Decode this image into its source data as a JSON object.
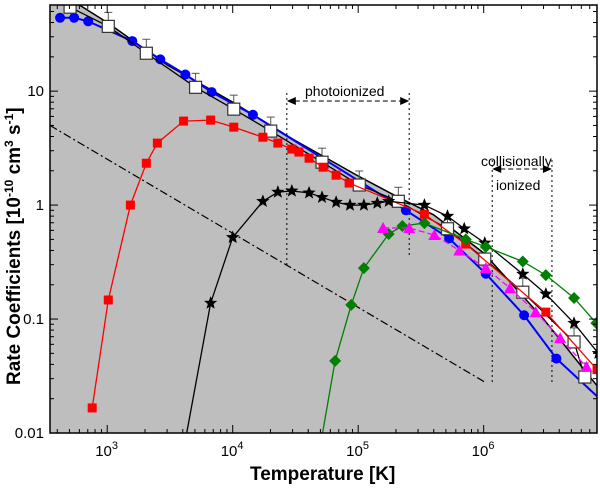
{
  "chart_data": {
    "type": "line",
    "xlabel": "Temperature [K]",
    "ylabel": "Rate Coefficients [10",
    "ylabel_exp": "-10",
    "ylabel_mid": " cm",
    "ylabel_exp2": "3",
    "ylabel_mid2": " s",
    "ylabel_exp3": "-1",
    "ylabel_end": "]",
    "xscale": "log",
    "yscale": "log",
    "xlim": [
      350,
      8000000
    ],
    "ylim": [
      0.01,
      57
    ],
    "xticks": [
      {
        "base": "10",
        "exp": "3",
        "v": 1000
      },
      {
        "base": "10",
        "exp": "4",
        "v": 10000
      },
      {
        "base": "10",
        "exp": "5",
        "v": 100000
      },
      {
        "base": "10",
        "exp": "6",
        "v": 1000000
      }
    ],
    "yticks": [
      {
        "label": "10",
        "v": 10
      },
      {
        "label": "1",
        "v": 1
      },
      {
        "label": "0.1",
        "v": 0.1
      },
      {
        "label": "0.01",
        "v": 0.01
      }
    ],
    "annotations": {
      "photo": "photoionized",
      "coll1": "collisionally",
      "coll2": "ionized"
    },
    "regions": {
      "photo": [
        27000,
        255000
      ],
      "coll": [
        1170000,
        3500000
      ]
    },
    "envelope": {
      "x": [
        350,
        600,
        1000,
        3000,
        10000,
        30000,
        100000,
        200000,
        400000,
        1000000,
        3000000,
        8000000
      ],
      "y": [
        60,
        57,
        40,
        17,
        8,
        3.8,
        1.8,
        1.2,
        0.82,
        0.38,
        0.1,
        0.026
      ]
    },
    "dashdot": {
      "x": [
        350,
        1020000
      ],
      "y": [
        5.0,
        0.028
      ]
    },
    "series": [
      {
        "name": "blue-circles",
        "color": "#0000ff",
        "marker": "circle",
        "dash": "",
        "x": [
          421,
          545,
          705,
          1585,
          2650,
          4200,
          6800,
          14500,
          240000,
          530000,
          1040000,
          2100000,
          3800000,
          8000000
        ],
        "y": [
          44,
          44,
          41,
          27.5,
          19,
          14,
          9.8,
          6.2,
          0.9,
          0.51,
          0.25,
          0.108,
          0.045,
          0.021
        ],
        "markers_last_skip": true
      },
      {
        "name": "open-squares",
        "color": "#000000",
        "marker": "open-square",
        "dash": "",
        "x": [
          506,
          1020,
          2050,
          5060,
          10200,
          20100,
          51500,
          102000,
          209000,
          515000,
          1020000,
          2050000,
          5250000,
          6400000
        ],
        "y": [
          54.5,
          37,
          21.5,
          10.8,
          6.95,
          4.46,
          2.38,
          1.5,
          1.08,
          0.62,
          0.336,
          0.172,
          0.063,
          0.031
        ]
      },
      {
        "name": "red-squares",
        "color": "#ff0000",
        "marker": "square",
        "dash": "",
        "x": [
          759,
          1020,
          1530,
          2050,
          2510,
          4060,
          6670,
          10200,
          17400,
          22900,
          29600,
          33700,
          40600,
          52500,
          66700,
          84700,
          337000,
          720000,
          3130000,
          8000000
        ],
        "y": [
          0.0166,
          0.147,
          1.0,
          2.33,
          3.5,
          5.46,
          5.57,
          4.83,
          3.94,
          3.5,
          3.1,
          2.92,
          2.58,
          2.15,
          1.83,
          1.56,
          0.83,
          0.455,
          0.115,
          0.036
        ]
      },
      {
        "name": "stars",
        "color": "#000000",
        "marker": "star",
        "dash": "",
        "x": [
          4300,
          6670,
          10000,
          17400,
          22900,
          29600,
          40600,
          51500,
          66700,
          86000,
          111000,
          142000,
          175000,
          337000,
          515000,
          700000,
          1020000,
          2050000,
          3130000,
          5250000,
          8200000
        ],
        "y": [
          0.01,
          0.138,
          0.52,
          1.08,
          1.3,
          1.33,
          1.28,
          1.17,
          1.06,
          1.0,
          1.0,
          1.04,
          1.08,
          1.0,
          0.8,
          0.62,
          0.465,
          0.248,
          0.166,
          0.092,
          0.05
        ]
      },
      {
        "name": "green-diamonds",
        "color": "#007f00",
        "marker": "diamond",
        "dash": "",
        "x": [
          52000,
          65500,
          88000,
          111000,
          175000,
          225000,
          337000,
          720000,
          1040000,
          2050000,
          3130000,
          5250000,
          7900000
        ],
        "y": [
          0.01,
          0.043,
          0.133,
          0.28,
          0.557,
          0.655,
          0.695,
          0.5,
          0.43,
          0.32,
          0.243,
          0.153,
          0.092
        ]
      },
      {
        "name": "magenta-triangles",
        "color": "#ff00ff",
        "marker": "triangle",
        "dash": "6,3",
        "x": [
          158000,
          255000,
          405000,
          640000,
          1040000,
          1620000,
          2600000,
          4070000,
          6600000
        ],
        "y": [
          0.63,
          0.63,
          0.546,
          0.4,
          0.28,
          0.187,
          0.115,
          0.068,
          0.038
        ]
      }
    ]
  }
}
